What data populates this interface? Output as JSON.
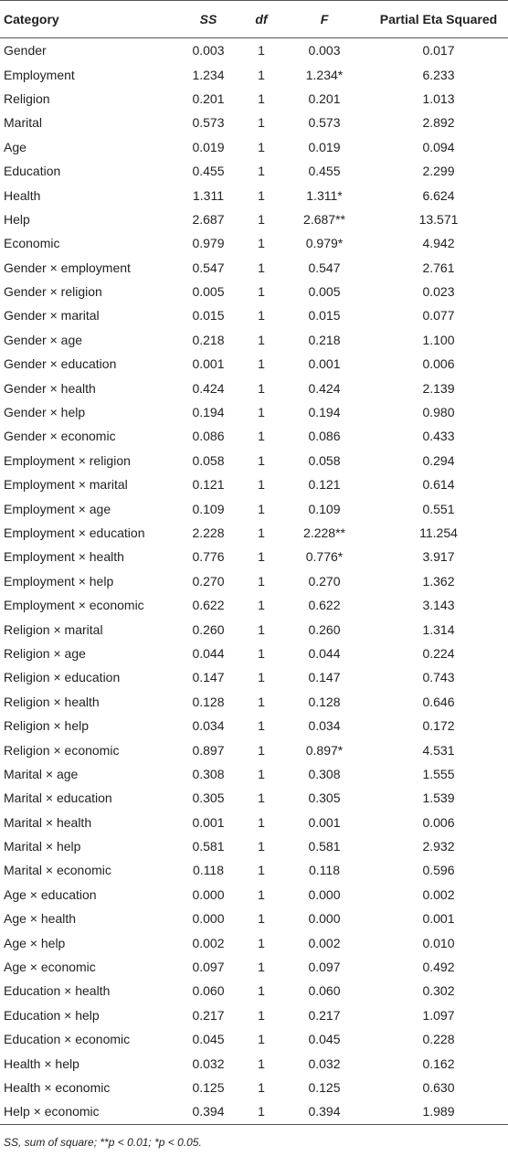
{
  "table": {
    "headers": [
      "Category",
      "SS",
      "df",
      "F",
      "Partial Eta Squared"
    ],
    "rows": [
      [
        "Gender",
        "0.003",
        "1",
        "0.003",
        "0.017"
      ],
      [
        "Employment",
        "1.234",
        "1",
        "1.234*",
        "6.233"
      ],
      [
        "Religion",
        "0.201",
        "1",
        "0.201",
        "1.013"
      ],
      [
        "Marital",
        "0.573",
        "1",
        "0.573",
        "2.892"
      ],
      [
        "Age",
        "0.019",
        "1",
        "0.019",
        "0.094"
      ],
      [
        "Education",
        "0.455",
        "1",
        "0.455",
        "2.299"
      ],
      [
        "Health",
        "1.311",
        "1",
        "1.311*",
        "6.624"
      ],
      [
        "Help",
        "2.687",
        "1",
        "2.687**",
        "13.571"
      ],
      [
        "Economic",
        "0.979",
        "1",
        "0.979*",
        "4.942"
      ],
      [
        "Gender × employment",
        "0.547",
        "1",
        "0.547",
        "2.761"
      ],
      [
        "Gender × religion",
        "0.005",
        "1",
        "0.005",
        "0.023"
      ],
      [
        "Gender × marital",
        "0.015",
        "1",
        "0.015",
        "0.077"
      ],
      [
        "Gender × age",
        "0.218",
        "1",
        "0.218",
        "1.100"
      ],
      [
        "Gender × education",
        "0.001",
        "1",
        "0.001",
        "0.006"
      ],
      [
        "Gender × health",
        "0.424",
        "1",
        "0.424",
        "2.139"
      ],
      [
        "Gender × help",
        "0.194",
        "1",
        "0.194",
        "0.980"
      ],
      [
        "Gender × economic",
        "0.086",
        "1",
        "0.086",
        "0.433"
      ],
      [
        "Employment × religion",
        "0.058",
        "1",
        "0.058",
        "0.294"
      ],
      [
        "Employment × marital",
        "0.121",
        "1",
        "0.121",
        "0.614"
      ],
      [
        "Employment × age",
        "0.109",
        "1",
        "0.109",
        "0.551"
      ],
      [
        "Employment × education",
        "2.228",
        "1",
        "2.228**",
        "11.254"
      ],
      [
        "Employment × health",
        "0.776",
        "1",
        "0.776*",
        "3.917"
      ],
      [
        "Employment × help",
        "0.270",
        "1",
        "0.270",
        "1.362"
      ],
      [
        "Employment × economic",
        "0.622",
        "1",
        "0.622",
        "3.143"
      ],
      [
        "Religion × marital",
        "0.260",
        "1",
        "0.260",
        "1.314"
      ],
      [
        "Religion × age",
        "0.044",
        "1",
        "0.044",
        "0.224"
      ],
      [
        "Religion × education",
        "0.147",
        "1",
        "0.147",
        "0.743"
      ],
      [
        "Religion × health",
        "0.128",
        "1",
        "0.128",
        "0.646"
      ],
      [
        "Religion × help",
        "0.034",
        "1",
        "0.034",
        "0.172"
      ],
      [
        "Religion × economic",
        "0.897",
        "1",
        "0.897*",
        "4.531"
      ],
      [
        "Marital × age",
        "0.308",
        "1",
        "0.308",
        "1.555"
      ],
      [
        "Marital × education",
        "0.305",
        "1",
        "0.305",
        "1.539"
      ],
      [
        "Marital × health",
        "0.001",
        "1",
        "0.001",
        "0.006"
      ],
      [
        "Marital × help",
        "0.581",
        "1",
        "0.581",
        "2.932"
      ],
      [
        "Marital × economic",
        "0.118",
        "1",
        "0.118",
        "0.596"
      ],
      [
        "Age × education",
        "0.000",
        "1",
        "0.000",
        "0.002"
      ],
      [
        "Age × health",
        "0.000",
        "1",
        "0.000",
        "0.001"
      ],
      [
        "Age × help",
        "0.002",
        "1",
        "0.002",
        "0.010"
      ],
      [
        "Age × economic",
        "0.097",
        "1",
        "0.097",
        "0.492"
      ],
      [
        "Education × health",
        "0.060",
        "1",
        "0.060",
        "0.302"
      ],
      [
        "Education × help",
        "0.217",
        "1",
        "0.217",
        "1.097"
      ],
      [
        "Education × economic",
        "0.045",
        "1",
        "0.045",
        "0.228"
      ],
      [
        "Health × help",
        "0.032",
        "1",
        "0.032",
        "0.162"
      ],
      [
        "Health × economic",
        "0.125",
        "1",
        "0.125",
        "0.630"
      ],
      [
        "Help × economic",
        "0.394",
        "1",
        "0.394",
        "1.989"
      ]
    ]
  },
  "footnote": "SS, sum of square; **p < 0.01; *p < 0.05."
}
